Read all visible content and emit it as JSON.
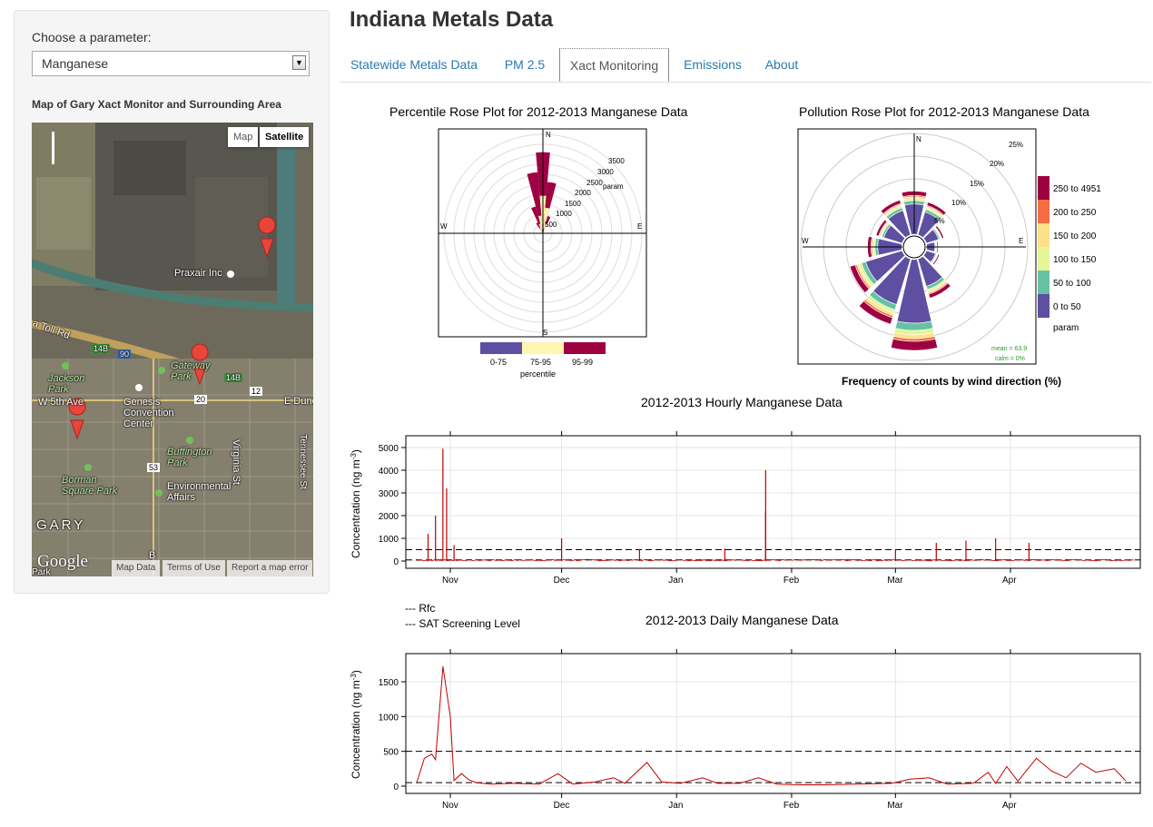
{
  "app": {
    "title": "Indiana Metals Data"
  },
  "sidebar": {
    "param_label": "Choose a parameter:",
    "param_value": "Manganese",
    "map_title": "Map of Gary Xact Monitor and Surrounding Area",
    "map": {
      "type_buttons": [
        "Map",
        "Satellite"
      ],
      "active_type": "Satellite",
      "labels": {
        "praxair": "Praxair Inc",
        "toll_rd": "a Toll Rd",
        "jackson_park": "Jackson\nPark",
        "gateway_park": "Gateway\nPark",
        "w5th": "W 5th Ave",
        "genesis": "Genesis\nConvention\nCenter",
        "buffington": "Buffington\nPark",
        "virginia": "Virginia St",
        "tennessee": "Tennessee St",
        "borman": "Borman\nSquare Park",
        "environmental": "Environmental\nAffairs",
        "gary": "GARY",
        "edune": "E Dune",
        "park": "Park",
        "b": "B"
      },
      "shields": [
        "14B",
        "90",
        "14B",
        "12",
        "20",
        "53"
      ],
      "footer": [
        "Map Data",
        "Terms of Use",
        "Report a map error"
      ],
      "google": "Google"
    }
  },
  "tabs": [
    {
      "label": "Statewide Metals Data",
      "active": false
    },
    {
      "label": "PM 2.5",
      "active": false
    },
    {
      "label": "Xact Monitoring",
      "active": true
    },
    {
      "label": "Emissions",
      "active": false
    },
    {
      "label": "About",
      "active": false
    }
  ],
  "colors": {
    "link": "#2a7ab0",
    "series": "#c00000",
    "purple": "#5e4fa2",
    "cream": "#fdf5b0",
    "maroon": "#9e0142"
  },
  "chart_data": [
    {
      "type": "polar",
      "title": "Percentile Rose Plot for 2012-2013 Manganese Data",
      "directions": [
        "N",
        "E",
        "S",
        "W"
      ],
      "radial_ticks": [
        500,
        1000,
        1500,
        2000,
        2500,
        3000,
        3500
      ],
      "radial_label": "param",
      "legend": {
        "title": "percentile",
        "entries": [
          {
            "label": "0-75",
            "color": "#5e4fa2"
          },
          {
            "label": "75-95",
            "color": "#fdf5b0"
          },
          {
            "label": "95-99",
            "color": "#9e0142"
          }
        ]
      },
      "percentile_by_direction": [
        {
          "dir": 0,
          "p75": 300,
          "p95": 1900,
          "p99": 4100
        },
        {
          "dir": 10,
          "p75": 250,
          "p95": 1300,
          "p99": 2600
        },
        {
          "dir": 20,
          "p75": 150,
          "p95": 500,
          "p99": 900
        },
        {
          "dir": 350,
          "p75": 200,
          "p95": 900,
          "p99": 3100
        },
        {
          "dir": 340,
          "p75": 150,
          "p95": 500,
          "p99": 1400
        },
        {
          "dir": 330,
          "p75": 100,
          "p95": 300,
          "p99": 600
        }
      ]
    },
    {
      "type": "polar",
      "title": "Pollution Rose Plot for 2012-2013 Manganese Data",
      "caption": "Frequency of counts by wind direction (%)",
      "directions": [
        "N",
        "E",
        "W"
      ],
      "radial_ticks": [
        "5%",
        "10%",
        "15%",
        "20%",
        "25%"
      ],
      "legend": {
        "title": "param",
        "entries": [
          {
            "label": "250 to 4951",
            "color": "#9e0142"
          },
          {
            "label": "200 to 250",
            "color": "#f46d43"
          },
          {
            "label": "150 to 200",
            "color": "#fee08b"
          },
          {
            "label": "100 to 150",
            "color": "#e6f598"
          },
          {
            "label": "50 to 100",
            "color": "#66c2a5"
          },
          {
            "label": "0 to 50",
            "color": "#5e4fa2"
          }
        ]
      },
      "stats": {
        "mean": "mean = 63.9",
        "calm": "calm = 0%"
      },
      "frequency_pct_by_direction": [
        {
          "dir": 0,
          "freq": 9.5
        },
        {
          "dir": 30,
          "freq": 7.5
        },
        {
          "dir": 60,
          "freq": 4
        },
        {
          "dir": 90,
          "freq": 2.5
        },
        {
          "dir": 120,
          "freq": 3
        },
        {
          "dir": 150,
          "freq": 9
        },
        {
          "dir": 180,
          "freq": 20
        },
        {
          "dir": 210,
          "freq": 15
        },
        {
          "dir": 240,
          "freq": 12
        },
        {
          "dir": 270,
          "freq": 7.5
        },
        {
          "dir": 300,
          "freq": 6
        },
        {
          "dir": 330,
          "freq": 8
        }
      ]
    },
    {
      "type": "line",
      "title": "2012-2013 Hourly Manganese Data",
      "ylabel": "Concentration (ng m^-3)",
      "yticks": [
        0,
        1000,
        2000,
        3000,
        4000,
        5000
      ],
      "xticks": [
        "Nov",
        "Dec",
        "Jan",
        "Feb",
        "Mar",
        "Apr"
      ],
      "hlines": [
        {
          "name": "Rfc",
          "value": 50
        },
        {
          "name": "SAT Screening Level",
          "value": 500
        }
      ],
      "legend": [
        "--- Rfc",
        "--- SAT Screening Level"
      ],
      "spikes": [
        {
          "date": "2012-10-26",
          "value": 1200
        },
        {
          "date": "2012-10-28",
          "value": 2000
        },
        {
          "date": "2012-10-30",
          "value": 4950
        },
        {
          "date": "2012-10-31",
          "value": 3200
        },
        {
          "date": "2012-11-02",
          "value": 700
        },
        {
          "date": "2012-12-01",
          "value": 1000
        },
        {
          "date": "2012-12-22",
          "value": 500
        },
        {
          "date": "2013-01-14",
          "value": 550
        },
        {
          "date": "2013-01-25",
          "value": 4000
        },
        {
          "date": "2013-01-25",
          "value": 2200
        },
        {
          "date": "2013-03-01",
          "value": 500
        },
        {
          "date": "2013-03-12",
          "value": 800
        },
        {
          "date": "2013-03-20",
          "value": 900
        },
        {
          "date": "2013-03-28",
          "value": 1000
        },
        {
          "date": "2013-04-06",
          "value": 800
        }
      ]
    },
    {
      "type": "line",
      "title": "2012-2013 Daily Manganese Data",
      "ylabel": "Concentration (ng m^-3)",
      "yticks": [
        0,
        500,
        1000,
        1500
      ],
      "xticks": [
        "Nov",
        "Dec",
        "Jan",
        "Feb",
        "Mar",
        "Apr"
      ],
      "hlines": [
        {
          "name": "Rfc",
          "value": 50
        },
        {
          "name": "SAT Screening Level",
          "value": 500
        }
      ],
      "points": [
        [
          "2012-10-23",
          60
        ],
        [
          "2012-10-25",
          400
        ],
        [
          "2012-10-27",
          460
        ],
        [
          "2012-10-28",
          380
        ],
        [
          "2012-10-30",
          1720
        ],
        [
          "2012-11-01",
          1000
        ],
        [
          "2012-11-02",
          80
        ],
        [
          "2012-11-04",
          180
        ],
        [
          "2012-11-06",
          90
        ],
        [
          "2012-11-08",
          50
        ],
        [
          "2012-11-12",
          30
        ],
        [
          "2012-11-18",
          40
        ],
        [
          "2012-11-25",
          30
        ],
        [
          "2012-11-30",
          180
        ],
        [
          "2012-12-04",
          30
        ],
        [
          "2012-12-10",
          60
        ],
        [
          "2012-12-15",
          120
        ],
        [
          "2012-12-18",
          40
        ],
        [
          "2012-12-24",
          340
        ],
        [
          "2012-12-28",
          60
        ],
        [
          "2013-01-02",
          40
        ],
        [
          "2013-01-08",
          120
        ],
        [
          "2013-01-12",
          40
        ],
        [
          "2013-01-18",
          40
        ],
        [
          "2013-01-23",
          120
        ],
        [
          "2013-01-28",
          30
        ],
        [
          "2013-02-03",
          20
        ],
        [
          "2013-02-10",
          20
        ],
        [
          "2013-02-28",
          40
        ],
        [
          "2013-03-05",
          100
        ],
        [
          "2013-03-10",
          120
        ],
        [
          "2013-03-15",
          30
        ],
        [
          "2013-03-22",
          40
        ],
        [
          "2013-03-26",
          200
        ],
        [
          "2013-03-28",
          40
        ],
        [
          "2013-03-31",
          280
        ],
        [
          "2013-04-03",
          70
        ],
        [
          "2013-04-08",
          400
        ],
        [
          "2013-04-12",
          220
        ],
        [
          "2013-04-16",
          120
        ],
        [
          "2013-04-20",
          330
        ],
        [
          "2013-04-24",
          200
        ],
        [
          "2013-04-29",
          250
        ],
        [
          "2013-05-02",
          80
        ]
      ]
    }
  ]
}
